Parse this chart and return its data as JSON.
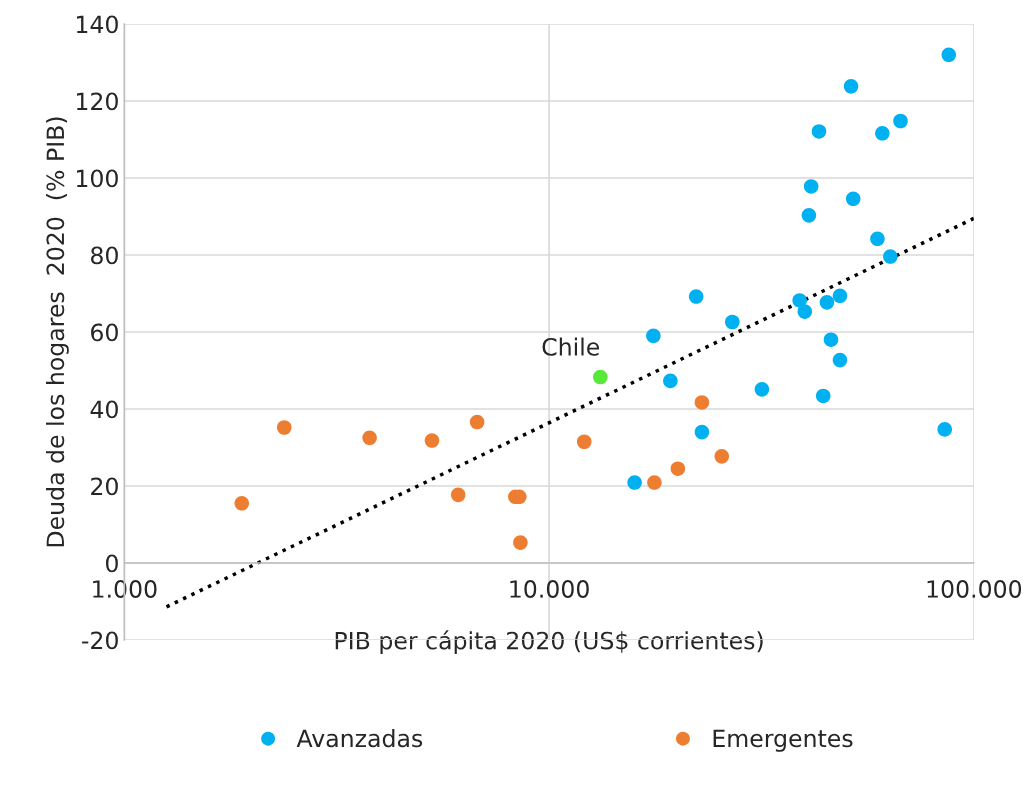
{
  "chart_data": {
    "type": "scatter",
    "xlabel": "PIB per cápita 2020 (US$ corrientes)",
    "ylabel": "Deuda de los hogares  2020  (% PIB)",
    "log": "x",
    "xlim": [
      1000,
      100000
    ],
    "xticks": [
      {
        "value": 1000,
        "label": "1.000"
      },
      {
        "value": 10000,
        "label": "10.000"
      },
      {
        "value": 100000,
        "label": "100.000"
      }
    ],
    "ylim": [
      -20,
      140
    ],
    "yticks": [
      -20,
      0,
      20,
      40,
      60,
      80,
      100,
      120,
      140
    ],
    "grid": true,
    "legend": "bottom",
    "marker": "circle",
    "series": [
      {
        "name": "Avanzadas",
        "color": "#00b0f0",
        "x": [
          87300,
          51400,
          43200,
          60900,
          67200,
          41400,
          52000,
          40900,
          59300,
          63600,
          48400,
          45100,
          38900,
          40000,
          22200,
          27000,
          17600,
          46100,
          48400,
          19300,
          31700,
          44200,
          22900,
          85400,
          15900
        ],
        "values": [
          132.0,
          123.8,
          112.1,
          111.6,
          114.8,
          97.8,
          94.6,
          90.3,
          84.2,
          79.6,
          69.4,
          67.7,
          68.2,
          65.3,
          69.2,
          62.6,
          59.0,
          58.0,
          52.7,
          47.3,
          45.1,
          43.4,
          34.0,
          34.7,
          20.9
        ]
      },
      {
        "name": "Emergentes",
        "color": "#ed7d31",
        "x": [
          1890,
          2380,
          3780,
          5300,
          6770,
          6110,
          8330,
          8510,
          8560,
          12100,
          22900,
          17700,
          20100,
          25500
        ],
        "values": [
          15.5,
          35.2,
          32.5,
          31.8,
          36.6,
          17.7,
          17.2,
          17.2,
          5.3,
          31.5,
          41.7,
          20.9,
          24.5,
          27.7
        ]
      },
      {
        "color": "#57e83a",
        "x": [
          13200
        ],
        "values": [
          48.3
        ]
      },
      {
        "type": "line",
        "color": "#000000",
        "line_style": "dotted",
        "marker": "none",
        "x": [
          1257,
          100000
        ],
        "values": [
          -11.4,
          89.5
        ]
      }
    ],
    "annotations": [
      {
        "text": "Chile",
        "x": 13200,
        "y": 48.3
      }
    ]
  }
}
